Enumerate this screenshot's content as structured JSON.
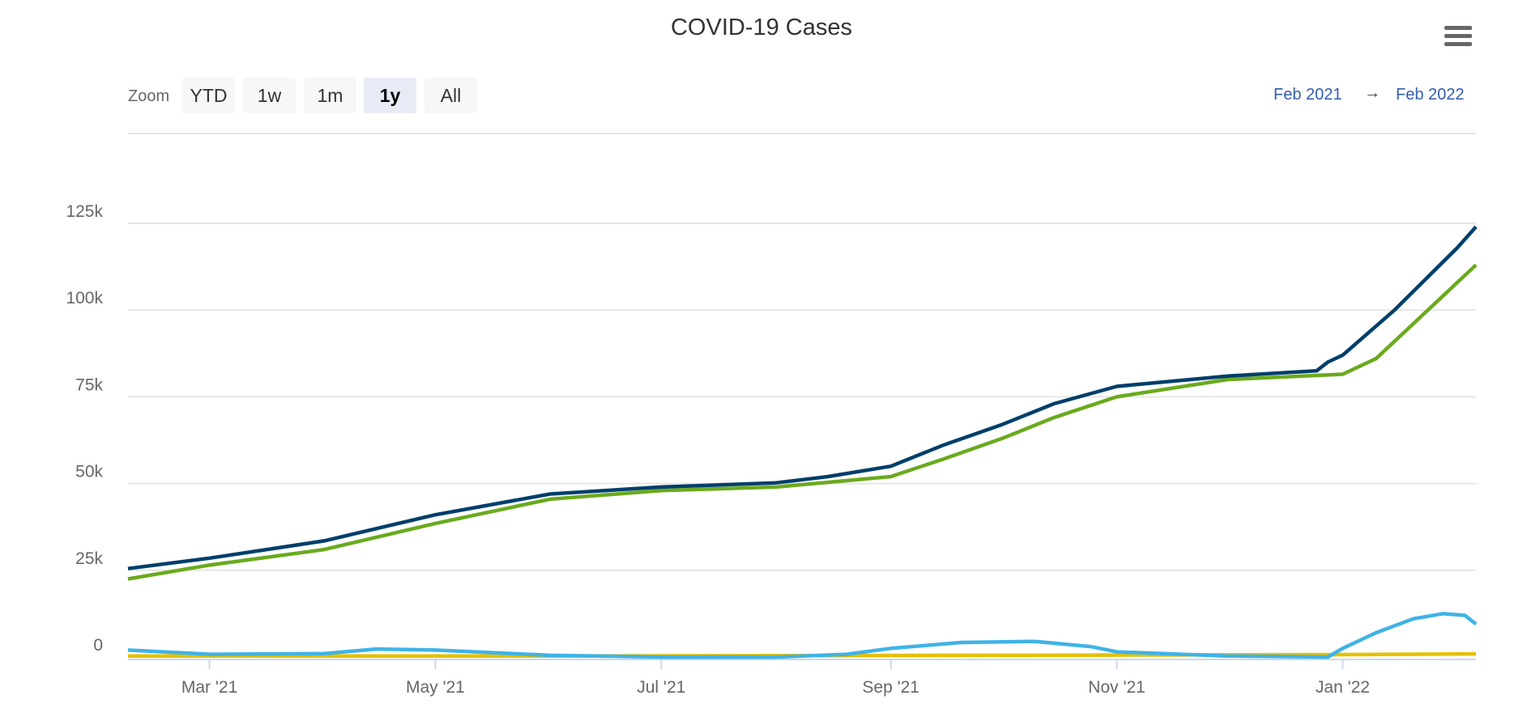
{
  "title": "COVID-19 Cases",
  "range_selector": {
    "zoom_label": "Zoom",
    "buttons": [
      {
        "label": "YTD",
        "active": false
      },
      {
        "label": "1w",
        "active": false
      },
      {
        "label": "1m",
        "active": false
      },
      {
        "label": "1y",
        "active": true
      },
      {
        "label": "All",
        "active": false
      }
    ],
    "from": "Feb 2021",
    "arrow": "→",
    "to": "Feb 2022"
  },
  "menu_icon": "hamburger-menu-icon",
  "chart_data": {
    "type": "line",
    "title": "COVID-19 Cases",
    "x_range": [
      "2021-02-07",
      "2022-02-06"
    ],
    "ylim": [
      0,
      150000
    ],
    "grid": true,
    "y_ticks": [
      {
        "value": 0,
        "label": "0"
      },
      {
        "value": 25000,
        "label": "25k"
      },
      {
        "value": 50000,
        "label": "50k"
      },
      {
        "value": 75000,
        "label": "75k"
      },
      {
        "value": 100000,
        "label": "100k"
      },
      {
        "value": 125000,
        "label": "125k"
      }
    ],
    "x_ticks": [
      {
        "date": "2021-03-01",
        "label": "Mar '21"
      },
      {
        "date": "2021-05-01",
        "label": "May '21"
      },
      {
        "date": "2021-07-01",
        "label": "Jul '21"
      },
      {
        "date": "2021-09-01",
        "label": "Sep '21"
      },
      {
        "date": "2021-11-01",
        "label": "Nov '21"
      },
      {
        "date": "2022-01-01",
        "label": "Jan '22"
      }
    ],
    "series": [
      {
        "color": "#003f6b",
        "points": [
          [
            "2021-02-07",
            25500
          ],
          [
            "2021-03-01",
            28500
          ],
          [
            "2021-04-01",
            33500
          ],
          [
            "2021-05-01",
            41000
          ],
          [
            "2021-06-01",
            47000
          ],
          [
            "2021-07-01",
            49000
          ],
          [
            "2021-08-01",
            50200
          ],
          [
            "2021-08-15",
            52000
          ],
          [
            "2021-09-01",
            55000
          ],
          [
            "2021-09-15",
            61000
          ],
          [
            "2021-10-01",
            67000
          ],
          [
            "2021-10-15",
            73000
          ],
          [
            "2021-11-01",
            78000
          ],
          [
            "2021-12-01",
            81000
          ],
          [
            "2021-12-25",
            82500
          ],
          [
            "2021-12-28",
            85000
          ],
          [
            "2022-01-01",
            87000
          ],
          [
            "2022-01-15",
            100000
          ],
          [
            "2022-02-01",
            118000
          ],
          [
            "2022-02-06",
            124000
          ]
        ]
      },
      {
        "color": "#6aaa1e",
        "points": [
          [
            "2021-02-07",
            22500
          ],
          [
            "2021-03-01",
            26500
          ],
          [
            "2021-04-01",
            31000
          ],
          [
            "2021-05-01",
            38500
          ],
          [
            "2021-06-01",
            45500
          ],
          [
            "2021-07-01",
            48000
          ],
          [
            "2021-08-01",
            49000
          ],
          [
            "2021-09-01",
            52000
          ],
          [
            "2021-09-15",
            57000
          ],
          [
            "2021-10-01",
            63000
          ],
          [
            "2021-10-15",
            69000
          ],
          [
            "2021-11-01",
            75000
          ],
          [
            "2021-12-01",
            80000
          ],
          [
            "2022-01-01",
            81500
          ],
          [
            "2022-01-10",
            86000
          ],
          [
            "2022-01-20",
            96000
          ],
          [
            "2022-02-01",
            108000
          ],
          [
            "2022-02-06",
            113000
          ]
        ]
      },
      {
        "color": "#3fb3e6",
        "points": [
          [
            "2021-02-07",
            2000
          ],
          [
            "2021-03-01",
            800
          ],
          [
            "2021-04-01",
            1000
          ],
          [
            "2021-04-15",
            2300
          ],
          [
            "2021-05-01",
            2000
          ],
          [
            "2021-06-01",
            500
          ],
          [
            "2021-07-01",
            0
          ],
          [
            "2021-08-01",
            0
          ],
          [
            "2021-08-20",
            800
          ],
          [
            "2021-09-01",
            2500
          ],
          [
            "2021-09-20",
            4200
          ],
          [
            "2021-10-10",
            4500
          ],
          [
            "2021-10-25",
            3000
          ],
          [
            "2021-11-01",
            1500
          ],
          [
            "2021-12-01",
            300
          ],
          [
            "2021-12-28",
            0
          ],
          [
            "2022-01-01",
            2500
          ],
          [
            "2022-01-10",
            7000
          ],
          [
            "2022-01-20",
            11000
          ],
          [
            "2022-01-28",
            12500
          ],
          [
            "2022-02-03",
            12000
          ],
          [
            "2022-02-06",
            9500
          ]
        ]
      },
      {
        "color": "#e5c100",
        "points": [
          [
            "2021-02-07",
            300
          ],
          [
            "2021-06-01",
            300
          ],
          [
            "2021-10-01",
            500
          ],
          [
            "2022-01-01",
            700
          ],
          [
            "2022-02-06",
            900
          ]
        ]
      }
    ]
  }
}
